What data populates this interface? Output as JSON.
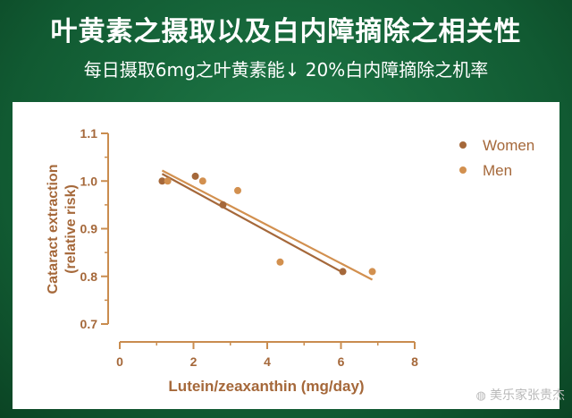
{
  "title": "叶黄素之摄取以及白内障摘除之相关性",
  "subtitle": "每日摄取6mg之叶黄素能↓ 20%白内障摘除之机率",
  "watermark": "美乐家张贵杰",
  "chart_data": {
    "type": "scatter",
    "xlabel": "Lutein/zeaxanthin (mg/day)",
    "ylabel_lines": [
      "Cataract extraction",
      "(relative risk)"
    ],
    "xlim": [
      0,
      8
    ],
    "ylim": [
      0.7,
      1.1
    ],
    "x_ticks": [
      "0",
      "2",
      "4",
      "6",
      "8"
    ],
    "y_ticks": [
      "0.7",
      "0.8",
      "0.9",
      "1.0",
      "1.1"
    ],
    "grid": false,
    "legend_position": "top-right",
    "series": [
      {
        "name": "Women",
        "color": "#a5683a",
        "points": [
          [
            1.15,
            1.0
          ],
          [
            2.05,
            1.01
          ],
          [
            2.8,
            0.95
          ],
          [
            6.05,
            0.81
          ]
        ],
        "trend": [
          [
            1.15,
            1.015
          ],
          [
            6.05,
            0.808
          ]
        ]
      },
      {
        "name": "Men",
        "color": "#d2904f",
        "points": [
          [
            1.3,
            1.0
          ],
          [
            2.25,
            1.0
          ],
          [
            3.2,
            0.98
          ],
          [
            4.35,
            0.83
          ],
          [
            6.85,
            0.81
          ]
        ],
        "trend": [
          [
            1.15,
            1.022
          ],
          [
            6.85,
            0.793
          ]
        ]
      }
    ]
  }
}
